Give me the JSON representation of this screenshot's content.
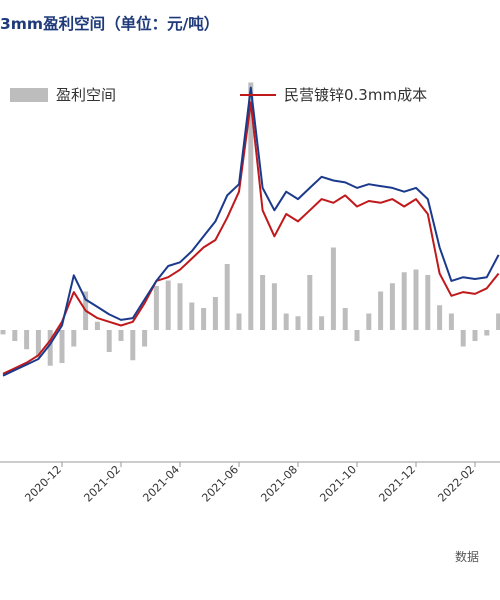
{
  "title": "3mm盈利空间（单位：元/吨）",
  "source_note": "数据",
  "colors": {
    "profit_bar": "#bdbdbd",
    "cost": "#c0191c",
    "price": "#1b3a8c",
    "axis": "#999999",
    "title": "#1f3a7a"
  },
  "chart_data": {
    "type": "bar+line",
    "title": "3mm盈利空间（单位：元/吨）",
    "xlabel": "",
    "ylabel": "",
    "x_ticks": [
      "2020-12",
      "2021-02",
      "2021-04",
      "2021-06",
      "2021-08",
      "2021-10",
      "2021-12",
      "2022-02"
    ],
    "legend": [
      {
        "label": "盈利空间",
        "kind": "bar"
      },
      {
        "label": "民营镀锌0.3mm成本",
        "kind": "line"
      }
    ],
    "series": [
      {
        "name": "盈利空间",
        "type": "bar",
        "x": [
          0.0,
          0.2,
          0.4,
          0.6,
          0.8,
          1.0,
          1.2,
          1.4,
          1.6,
          1.8,
          2.0,
          2.2,
          2.4,
          2.6,
          2.8,
          3.0,
          3.2,
          3.4,
          3.6,
          3.8,
          4.0,
          4.2,
          4.4,
          4.6,
          4.8,
          5.0,
          5.2,
          5.4,
          5.6,
          5.8,
          6.0,
          6.2,
          6.4,
          6.6,
          6.8,
          7.0,
          7.2,
          7.4,
          7.6,
          7.8,
          8.0,
          8.2,
          8.4
        ],
        "values": [
          -80,
          -200,
          -350,
          -500,
          -650,
          -600,
          -300,
          700,
          150,
          -400,
          -200,
          -550,
          -300,
          800,
          900,
          850,
          500,
          400,
          600,
          1200,
          300,
          4500,
          1000,
          850,
          300,
          250,
          1000,
          250,
          1500,
          400,
          -200,
          300,
          700,
          850,
          1050,
          1100,
          1000,
          450,
          300,
          -300,
          -200,
          -100,
          300
        ]
      },
      {
        "name": "民营镀锌0.3mm成本",
        "type": "line",
        "x": [
          0.0,
          0.2,
          0.4,
          0.6,
          0.8,
          1.0,
          1.2,
          1.4,
          1.6,
          1.8,
          2.0,
          2.2,
          2.4,
          2.6,
          2.8,
          3.0,
          3.2,
          3.4,
          3.6,
          3.8,
          4.0,
          4.2,
          4.4,
          4.6,
          4.8,
          5.0,
          5.2,
          5.4,
          5.6,
          5.8,
          6.0,
          6.2,
          6.4,
          6.6,
          6.8,
          7.0,
          7.2,
          7.4,
          7.6,
          7.8,
          8.0,
          8.2,
          8.4
        ],
        "values": [
          5500,
          5650,
          5800,
          6000,
          6400,
          6900,
          7700,
          7200,
          7000,
          6900,
          6800,
          6900,
          7400,
          8000,
          8100,
          8300,
          8600,
          8900,
          9100,
          9700,
          10400,
          12800,
          9900,
          9200,
          9800,
          9600,
          9900,
          10200,
          10100,
          10300,
          10000,
          10150,
          10100,
          10200,
          10000,
          10200,
          9800,
          8200,
          7600,
          7700,
          7650,
          7800,
          8200
        ]
      },
      {
        "name": "",
        "type": "line",
        "x": [
          0.0,
          0.2,
          0.4,
          0.6,
          0.8,
          1.0,
          1.2,
          1.4,
          1.6,
          1.8,
          2.0,
          2.2,
          2.4,
          2.6,
          2.8,
          3.0,
          3.2,
          3.4,
          3.6,
          3.8,
          4.0,
          4.2,
          4.4,
          4.6,
          4.8,
          5.0,
          5.2,
          5.4,
          5.6,
          5.8,
          6.0,
          6.2,
          6.4,
          6.6,
          6.8,
          7.0,
          7.2,
          7.4,
          7.6,
          7.8,
          8.0,
          8.2,
          8.4
        ],
        "values": [
          5450,
          5600,
          5750,
          5900,
          6300,
          6800,
          8150,
          7500,
          7300,
          7100,
          6950,
          7000,
          7500,
          8000,
          8400,
          8500,
          8800,
          9200,
          9600,
          10300,
          10600,
          13200,
          10500,
          9900,
          10400,
          10200,
          10500,
          10800,
          10700,
          10650,
          10500,
          10600,
          10550,
          10500,
          10400,
          10500,
          10200,
          8900,
          8000,
          8100,
          8050,
          8100,
          8700
        ]
      }
    ]
  }
}
